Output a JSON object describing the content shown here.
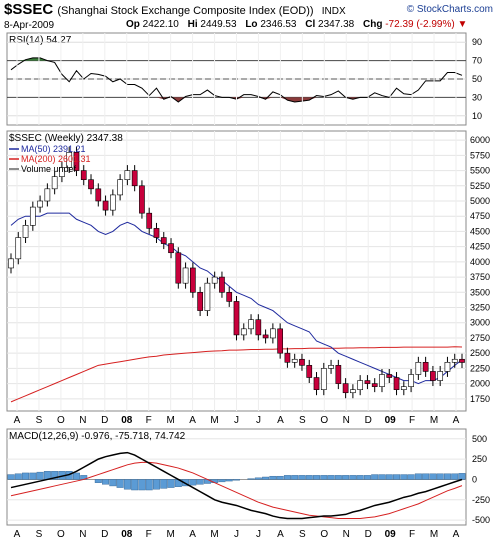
{
  "header": {
    "symbol": "$SSEC",
    "name": "(Shanghai Stock Exchange Composite Index (EOD))",
    "exchange": "INDX",
    "brand": "© StockCharts.com",
    "date": "8-Apr-2009",
    "open_label": "Op",
    "open": "2422.10",
    "high_label": "Hi",
    "high": "2449.53",
    "low_label": "Lo",
    "low": "2346.53",
    "close_label": "Cl",
    "close": "2347.38",
    "chg_label": "Chg",
    "chg": "-72.39 (-2.99%)",
    "chg_arrow": "▼"
  },
  "colors": {
    "ma50": "#1f2a9e",
    "ma200": "#d62020",
    "up_candle": "#ffffff",
    "down_candle": "#c8003c",
    "rsi_fill_high": "#3a7d3a",
    "rsi_fill_low": "#8a3a3a",
    "macd_hist": "#5b9bd5",
    "macd_signal": "#d62020"
  },
  "chart_data": [
    {
      "type": "line",
      "title": "RSI(14) 54.27",
      "ylim": [
        0,
        100
      ],
      "y_ticks": [
        10,
        30,
        50,
        70,
        90
      ],
      "overbought": 70,
      "oversold": 30,
      "series": [
        {
          "name": "RSI(14)",
          "values": [
            60,
            66,
            71,
            73,
            73,
            70,
            68,
            55,
            47,
            59,
            50,
            56,
            55,
            53,
            47,
            50,
            44,
            44,
            40,
            32,
            40,
            28,
            31,
            25,
            31,
            33,
            33,
            38,
            32,
            30,
            30,
            28,
            33,
            33,
            31,
            28,
            36,
            33,
            27,
            25,
            26,
            27,
            32,
            31,
            33,
            37,
            30,
            28,
            30,
            30,
            35,
            32,
            30,
            40,
            34,
            33,
            38,
            48,
            48,
            48,
            57,
            57,
            54
          ]
        }
      ]
    },
    {
      "type": "candlestick",
      "title": "$SSEC (Weekly) 2347.38",
      "legend": [
        "MA(50) 2391.21",
        "MA(200) 2601.31",
        "Volume undef"
      ],
      "ylim": [
        1550,
        6150
      ],
      "y_ticks": [
        1750,
        2000,
        2250,
        2500,
        2750,
        3000,
        3250,
        3500,
        3750,
        4000,
        4250,
        4500,
        4750,
        5000,
        5250,
        5500,
        5750,
        6000
      ],
      "x_ticks": [
        "A",
        "S",
        "O",
        "N",
        "D",
        "08",
        "F",
        "M",
        "A",
        "M",
        "J",
        "J",
        "A",
        "S",
        "O",
        "N",
        "D",
        "09",
        "F",
        "M",
        "A"
      ],
      "close": [
        4050,
        4400,
        4600,
        4900,
        5000,
        5200,
        5400,
        5550,
        5800,
        5500,
        5350,
        5200,
        5000,
        4850,
        5100,
        5350,
        5500,
        5250,
        4800,
        4550,
        4400,
        4300,
        4150,
        3650,
        3900,
        3500,
        3200,
        3650,
        3750,
        3500,
        3350,
        2800,
        2900,
        3050,
        2800,
        2750,
        2900,
        2500,
        2350,
        2400,
        2300,
        2100,
        1900,
        2250,
        2300,
        2000,
        1850,
        1900,
        2050,
        2000,
        1950,
        2150,
        2100,
        1900,
        1950,
        2150,
        2350,
        2200,
        2050,
        2200,
        2350,
        2400,
        2347
      ],
      "ma50": [
        4600,
        4700,
        4750,
        4750,
        4750,
        4800,
        4800,
        4800,
        4800,
        4700,
        4650,
        4600,
        4500,
        4450,
        4500,
        4600,
        4650,
        4600,
        4500,
        4450,
        4400,
        4300,
        4250,
        4150,
        4100,
        4000,
        3900,
        3850,
        3750,
        3700,
        3600,
        3500,
        3450,
        3400,
        3300,
        3250,
        3200,
        3100,
        3000,
        2950,
        2900,
        2850,
        2700,
        2650,
        2600,
        2500,
        2450,
        2400,
        2350,
        2300,
        2250,
        2200,
        2150,
        2100,
        2050,
        2050,
        2000,
        2050,
        2050,
        2100,
        2200,
        2300,
        2391
      ],
      "ma200": [
        1700,
        1750,
        1800,
        1850,
        1900,
        1950,
        2000,
        2050,
        2100,
        2150,
        2200,
        2250,
        2300,
        2320,
        2340,
        2360,
        2380,
        2400,
        2420,
        2440,
        2450,
        2470,
        2480,
        2490,
        2500,
        2510,
        2520,
        2530,
        2535,
        2540,
        2550,
        2550,
        2555,
        2560,
        2560,
        2565,
        2565,
        2570,
        2570,
        2575,
        2575,
        2580,
        2580,
        2580,
        2580,
        2580,
        2585,
        2585,
        2590,
        2590,
        2590,
        2595,
        2595,
        2595,
        2600,
        2600,
        2600,
        2600,
        2600,
        2600,
        2600,
        2605,
        2601
      ]
    },
    {
      "type": "line",
      "title": "MACD(12,26,9) -0.976, -75.718, 74.742",
      "legend": [
        "-0.976",
        "-75.718",
        "74.742"
      ],
      "ylim": [
        -560,
        620
      ],
      "y_ticks": [
        -500,
        -250,
        0,
        250,
        500
      ],
      "series": [
        {
          "name": "MACD",
          "values": [
            -100,
            -80,
            -60,
            -40,
            -20,
            0,
            20,
            40,
            60,
            100,
            150,
            200,
            250,
            280,
            300,
            320,
            330,
            300,
            250,
            200,
            150,
            100,
            50,
            0,
            -50,
            -100,
            -150,
            -200,
            -250,
            -280,
            -300,
            -320,
            -350,
            -380,
            -400,
            -420,
            -450,
            -470,
            -480,
            -480,
            -480,
            -470,
            -460,
            -450,
            -450,
            -440,
            -430,
            -400,
            -380,
            -350,
            -320,
            -300,
            -280,
            -250,
            -220,
            -200,
            -170,
            -150,
            -120,
            -90,
            -60,
            -30,
            -1
          ]
        },
        {
          "name": "Signal",
          "values": [
            -200,
            -180,
            -160,
            -140,
            -120,
            -100,
            -80,
            -60,
            -40,
            -20,
            0,
            30,
            60,
            90,
            120,
            150,
            180,
            200,
            210,
            210,
            200,
            180,
            160,
            140,
            110,
            80,
            40,
            0,
            -40,
            -80,
            -120,
            -160,
            -200,
            -240,
            -280,
            -310,
            -340,
            -360,
            -380,
            -400,
            -420,
            -440,
            -450,
            -460,
            -470,
            -480,
            -480,
            -480,
            -480,
            -470,
            -460,
            -440,
            -420,
            -390,
            -360,
            -330,
            -300,
            -260,
            -220,
            -180,
            -140,
            -110,
            -76
          ]
        },
        {
          "name": "Histogram",
          "values": [
            60,
            70,
            80,
            80,
            90,
            100,
            100,
            100,
            100,
            80,
            50,
            0,
            -40,
            -60,
            -80,
            -100,
            -120,
            -130,
            -130,
            -130,
            -120,
            -110,
            -100,
            -90,
            -80,
            -70,
            -60,
            -50,
            -40,
            -30,
            -20,
            -10,
            0,
            10,
            20,
            30,
            40,
            40,
            50,
            50,
            50,
            50,
            50,
            50,
            50,
            50,
            50,
            50,
            50,
            50,
            60,
            60,
            60,
            60,
            60,
            60,
            70,
            70,
            70,
            70,
            70,
            70,
            75
          ]
        }
      ]
    }
  ]
}
